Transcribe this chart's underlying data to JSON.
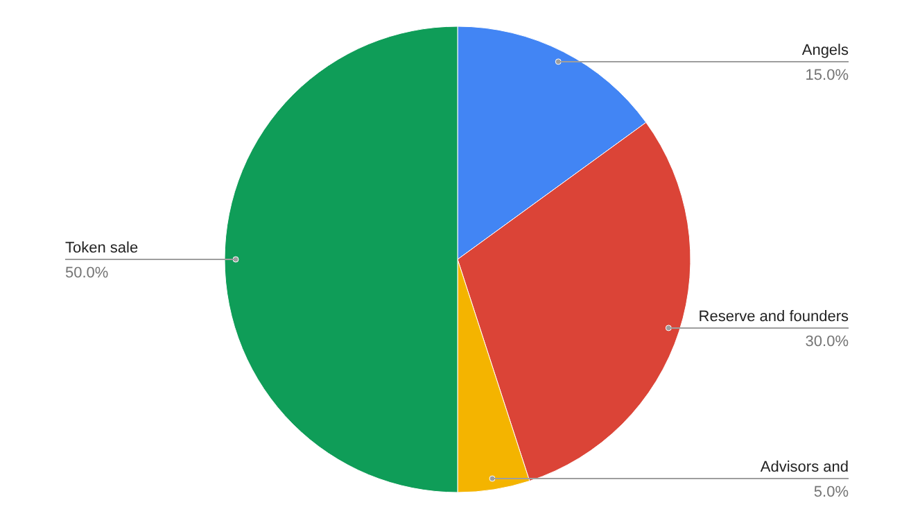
{
  "chart_data": {
    "type": "pie",
    "categories": [
      "Angels",
      "Reserve and founders",
      "Advisors and",
      "Token sale"
    ],
    "values": [
      15,
      30,
      5,
      50
    ],
    "colors": [
      "#4285f4",
      "#db4437",
      "#f4b400",
      "#0f9d58"
    ],
    "value_labels": [
      "15.0%",
      "30.0%",
      "5.0%",
      "50.0%"
    ],
    "legend": false
  }
}
